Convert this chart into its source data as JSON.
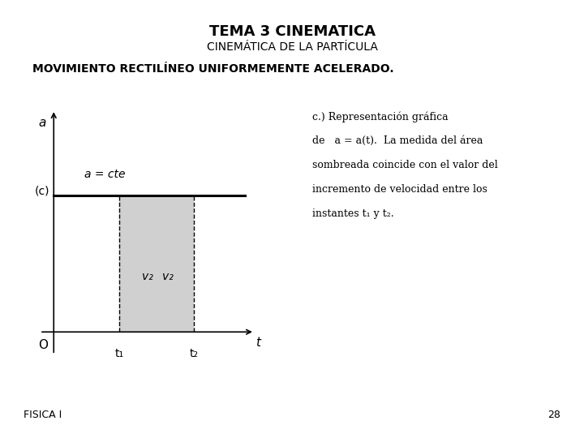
{
  "title": "TEMA 3 CINEMATICA",
  "subtitle": "CINEMÁTICA DE LA PARTÍCULA",
  "heading": "MOVIMIENTO RECTILÍNEO UNIFORMEMENTE ACELERADO.",
  "footnote_left": "FISICA I",
  "footnote_right": "28",
  "bg_color": "#ffffff",
  "graph": {
    "label_c": "(c)",
    "label_y": "a",
    "label_t": "t",
    "label_O": "O",
    "label_t1": "t₁",
    "label_t2": "t₂",
    "label_acte": "a = cte",
    "label_v2left": "v₂",
    "label_v2right": "v₂",
    "a_level": 0.6,
    "t1": 0.28,
    "t2": 0.6,
    "t_max": 0.82,
    "shade_color": "#c8c8c8",
    "line_color": "#000000",
    "axis_color": "#000000"
  },
  "annotation": {
    "line1": "c.) Representación gráfica",
    "line2": "de   a = a(t).  La medida del área",
    "line3": "sombreada coincide con el valor del",
    "line4": "incremento de velocidad entre los",
    "line5": "instantes t₁ y t₂."
  }
}
